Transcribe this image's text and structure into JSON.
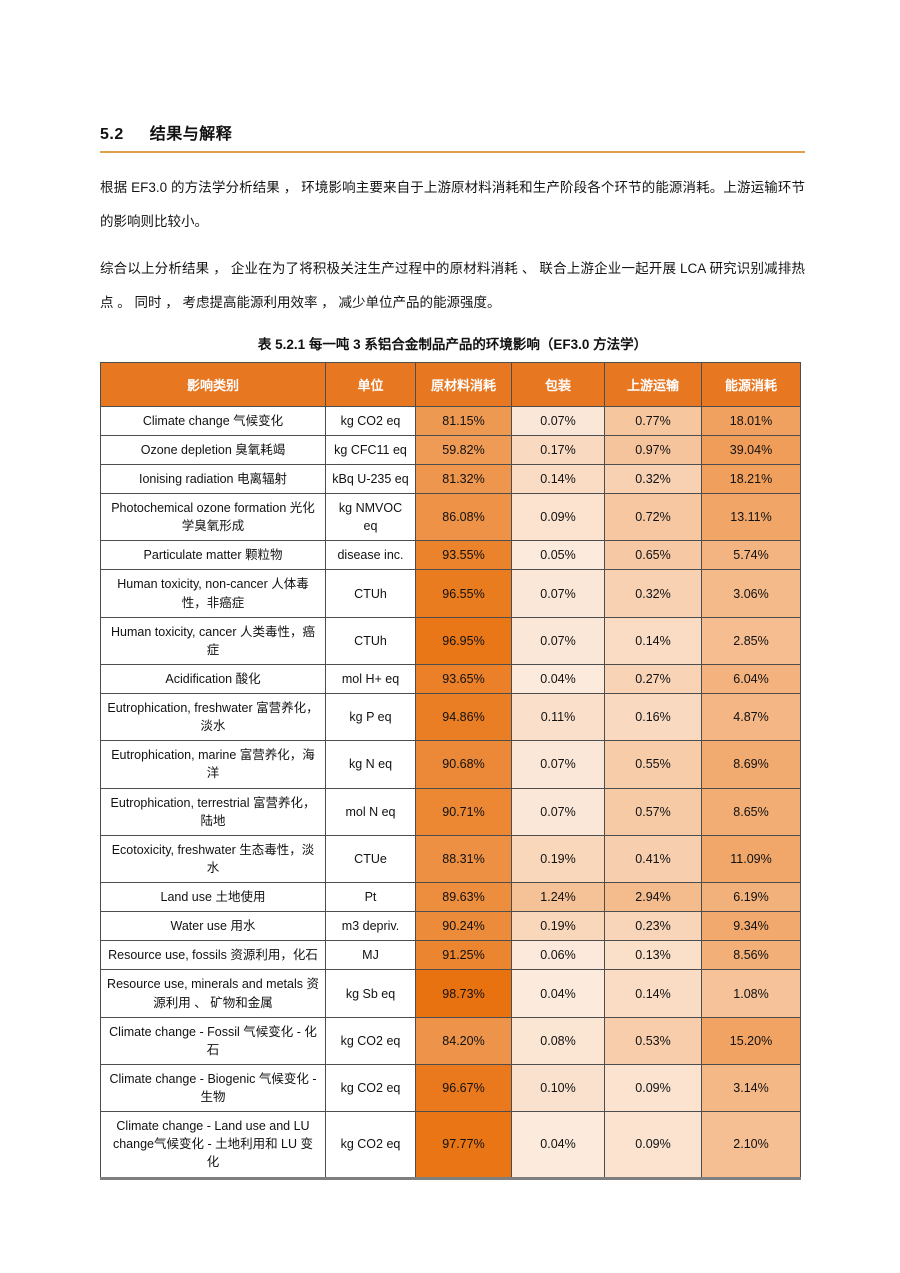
{
  "page": {
    "heading_number": "5.2",
    "heading_title": "结果与解释",
    "paragraph1": "根据 EF3.0 的方法学分析结果 ， 环境影响主要来自于上游原材料消耗和生产阶段各个环节的能源消耗。上游运输环节的影响则比较小。",
    "paragraph2": "综合以上分析结果 ， 企业在为了将积极关注生产过程中的原材料消耗 、 联合上游企业一起开展 LCA 研究识别减排热点 。 同时 ， 考虑提高能源利用效率 ， 减少单位产品的能源强度。",
    "table_caption": "表 5.2.1 每一吨 3 系铝合金制品产品的环境影响（EF3.0 方法学）"
  },
  "colors": {
    "header_bg": "#E87722",
    "header_text": "#FFFFFF",
    "heading_rule": "#DFA14E",
    "cell_scale_light": "#FCEBDE",
    "cell_scale_dark": "#E8710E",
    "table_border": "#4D4D4D"
  },
  "chart_data": {
    "type": "table",
    "title": "表 5.2.1 每一吨 3 系铝合金制品产品的环境影响（EF3.0 方法学）",
    "headers": [
      "影响类别",
      "单位",
      "原材料消耗",
      "包装",
      "上游运输",
      "能源消耗"
    ],
    "value_unit": "percent",
    "rows": [
      {
        "category": "Climate change 气候变化",
        "unit": "kg CO2 eq",
        "values": [
          81.15,
          0.07,
          0.77,
          18.01
        ]
      },
      {
        "category": "Ozone depletion 臭氧耗竭",
        "unit": "kg CFC11 eq",
        "values": [
          59.82,
          0.17,
          0.97,
          39.04
        ]
      },
      {
        "category": "Ionising radiation 电离辐射",
        "unit": "kBq U-235 eq",
        "values": [
          81.32,
          0.14,
          0.32,
          18.21
        ]
      },
      {
        "category": "Photochemical ozone formation 光化学臭氧形成",
        "unit": "kg NMVOC eq",
        "values": [
          86.08,
          0.09,
          0.72,
          13.11
        ]
      },
      {
        "category": "Particulate matter 颗粒物",
        "unit": "disease inc.",
        "values": [
          93.55,
          0.05,
          0.65,
          5.74
        ]
      },
      {
        "category": "Human toxicity, non-cancer 人体毒性，非癌症",
        "unit": "CTUh",
        "values": [
          96.55,
          0.07,
          0.32,
          3.06
        ]
      },
      {
        "category": "Human toxicity, cancer 人类毒性，癌症",
        "unit": "CTUh",
        "values": [
          96.95,
          0.07,
          0.14,
          2.85
        ]
      },
      {
        "category": "Acidification 酸化",
        "unit": "mol H+ eq",
        "values": [
          93.65,
          0.04,
          0.27,
          6.04
        ]
      },
      {
        "category": "Eutrophication, freshwater 富营养化，淡水",
        "unit": "kg P eq",
        "values": [
          94.86,
          0.11,
          0.16,
          4.87
        ]
      },
      {
        "category": "Eutrophication, marine 富营养化，海洋",
        "unit": "kg N eq",
        "values": [
          90.68,
          0.07,
          0.55,
          8.69
        ]
      },
      {
        "category": "Eutrophication, terrestrial 富营养化，陆地",
        "unit": "mol N eq",
        "values": [
          90.71,
          0.07,
          0.57,
          8.65
        ]
      },
      {
        "category": "Ecotoxicity, freshwater 生态毒性，淡水",
        "unit": "CTUe",
        "values": [
          88.31,
          0.19,
          0.41,
          11.09
        ]
      },
      {
        "category": "Land use 土地使用",
        "unit": "Pt",
        "values": [
          89.63,
          1.24,
          2.94,
          6.19
        ]
      },
      {
        "category": "Water use 用水",
        "unit": "m3 depriv.",
        "values": [
          90.24,
          0.19,
          0.23,
          9.34
        ]
      },
      {
        "category": "Resource use, fossils 资源利用，化石",
        "unit": "MJ",
        "values": [
          91.25,
          0.06,
          0.13,
          8.56
        ]
      },
      {
        "category": "Resource use, minerals and metals 资源利用 、 矿物和金属",
        "unit": "kg Sb eq",
        "values": [
          98.73,
          0.04,
          0.14,
          1.08
        ]
      },
      {
        "category": "Climate change - Fossil 气候变化 - 化石",
        "unit": "kg CO2 eq",
        "values": [
          84.2,
          0.08,
          0.53,
          15.2
        ]
      },
      {
        "category": "Climate change - Biogenic 气候变化 - 生物",
        "unit": "kg CO2 eq",
        "values": [
          96.67,
          0.1,
          0.09,
          3.14
        ]
      },
      {
        "category": "Climate change - Land use and LU change气候变化 - 土地利用和 LU 变 化",
        "unit": "kg CO2 eq",
        "values": [
          97.77,
          0.04,
          0.09,
          2.1
        ]
      }
    ]
  }
}
